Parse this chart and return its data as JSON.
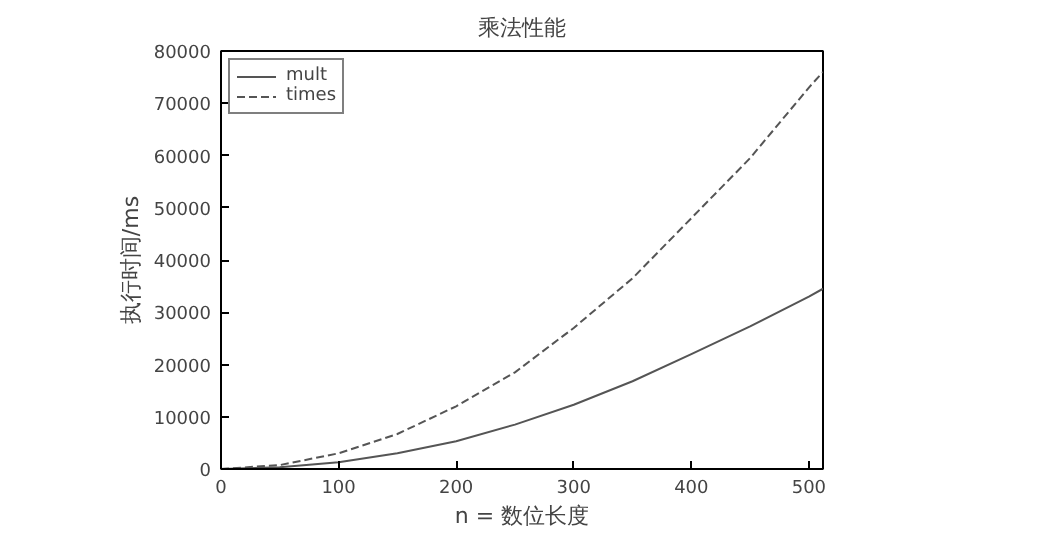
{
  "chart_data": {
    "type": "line",
    "title": "乘法性能",
    "xlabel": "n = 数位长度",
    "ylabel": "执行时间/ms",
    "x": [
      0,
      50,
      100,
      150,
      200,
      250,
      300,
      350,
      400,
      450,
      500,
      512
    ],
    "series": [
      {
        "name": "mult",
        "color": "#555555",
        "line_style": "solid",
        "values": [
          0,
          330,
          1300,
          3000,
          5300,
          8500,
          12300,
          16800,
          22000,
          27300,
          33000,
          34500
        ]
      },
      {
        "name": "times",
        "color": "#555555",
        "line_style": "dashed",
        "values": [
          0,
          750,
          3000,
          6700,
          12000,
          18500,
          27000,
          36500,
          48000,
          59500,
          73000,
          76000
        ]
      }
    ],
    "xlim": [
      0,
      512
    ],
    "ylim": [
      0,
      80000
    ],
    "xticks": [
      0,
      100,
      200,
      300,
      400,
      500
    ],
    "yticks": [
      0,
      10000,
      20000,
      30000,
      40000,
      50000,
      60000,
      70000,
      80000
    ],
    "grid": false,
    "legend": "top left",
    "marker": "none"
  }
}
